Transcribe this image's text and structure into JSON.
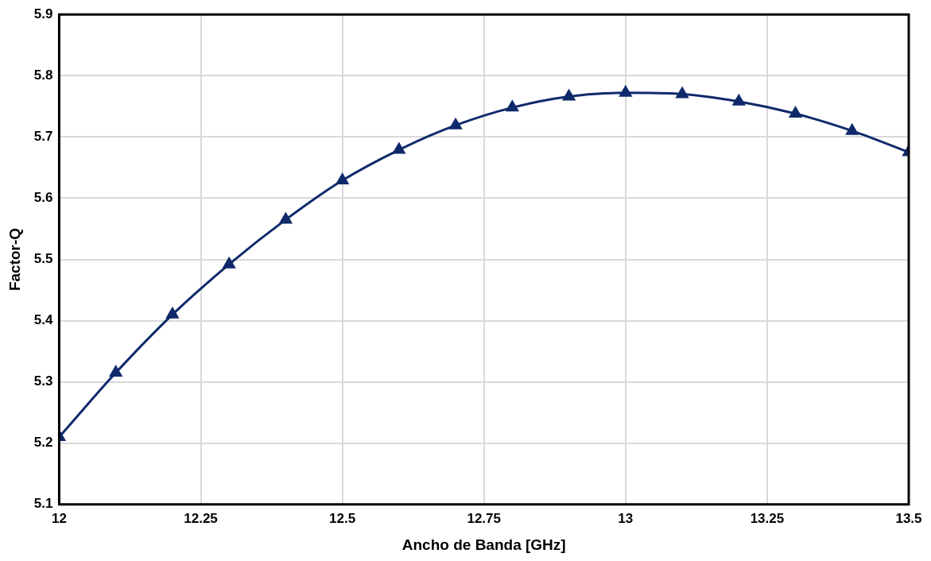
{
  "chart_data": {
    "type": "line",
    "xlabel": "Ancho de Banda [GHz]",
    "ylabel": "Factor-Q",
    "x": [
      12,
      12.1,
      12.2,
      12.3,
      12.4,
      12.5,
      12.6,
      12.7,
      12.8,
      12.9,
      13,
      13.1,
      13.2,
      13.3,
      13.4,
      13.5
    ],
    "series": [
      {
        "color": "#0f2a6b",
        "values": [
          5.21,
          5.315,
          5.41,
          5.492,
          5.565,
          5.629,
          5.679,
          5.719,
          5.748,
          5.766,
          5.772,
          5.77,
          5.758,
          5.738,
          5.71,
          5.675
        ]
      }
    ],
    "xlim": [
      12,
      13.5
    ],
    "xticks": [
      12,
      12.25,
      12.5,
      12.75,
      13,
      13.25,
      13.5
    ],
    "ylim": [
      5.1,
      5.9
    ],
    "yticks": [
      5.1,
      5.2,
      5.3,
      5.4,
      5.5,
      5.6,
      5.7,
      5.8,
      5.9
    ],
    "grid": true,
    "legend": false,
    "marker": "triangle",
    "line_style": "solid"
  }
}
